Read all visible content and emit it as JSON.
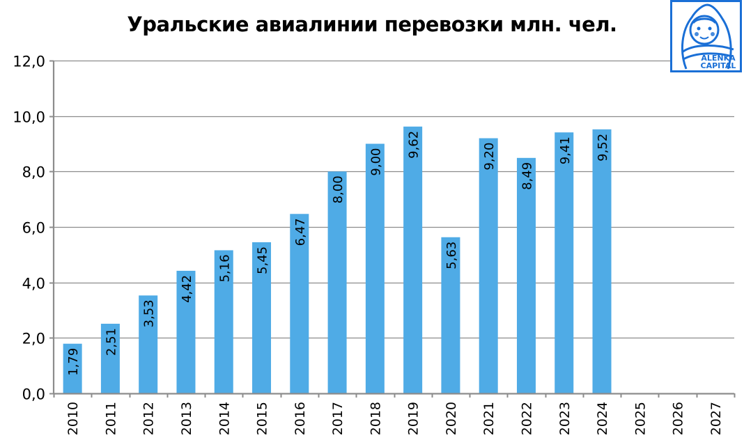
{
  "title": "Уральские авиалинии перевозки млн. чел.",
  "logo": {
    "line1": "ALЁNKA",
    "line2": "CAPITAL",
    "color": "#1a6fd6"
  },
  "colors": {
    "bar": "#4fabe6",
    "grid": "#8c8c8c",
    "text": "#000000"
  },
  "y_ticks": [
    "0,0",
    "2,0",
    "4,0",
    "6,0",
    "8,0",
    "10,0",
    "12,0"
  ],
  "chart_data": {
    "type": "bar",
    "title": "Уральские авиалинии перевозки млн. чел.",
    "xlabel": "",
    "ylabel": "",
    "ylim": [
      0,
      12
    ],
    "yticks": [
      0,
      2,
      4,
      6,
      8,
      10,
      12
    ],
    "grid": true,
    "legend": null,
    "categories": [
      "2010",
      "2011",
      "2012",
      "2013",
      "2014",
      "2015",
      "2016",
      "2017",
      "2018",
      "2019",
      "2020",
      "2021",
      "2022",
      "2023",
      "2024",
      "2025",
      "2026",
      "2027"
    ],
    "values": [
      1.79,
      2.51,
      3.53,
      4.42,
      5.16,
      5.45,
      6.47,
      8.0,
      9.0,
      9.62,
      5.63,
      9.2,
      8.49,
      9.41,
      9.52,
      null,
      null,
      null
    ],
    "data_labels": [
      "1,79",
      "2,51",
      "3,53",
      "4,42",
      "5,16",
      "5,45",
      "6,47",
      "8,00",
      "9,00",
      "9,62",
      "5,63",
      "9,20",
      "8,49",
      "9,41",
      "9,52",
      "",
      "",
      ""
    ]
  }
}
